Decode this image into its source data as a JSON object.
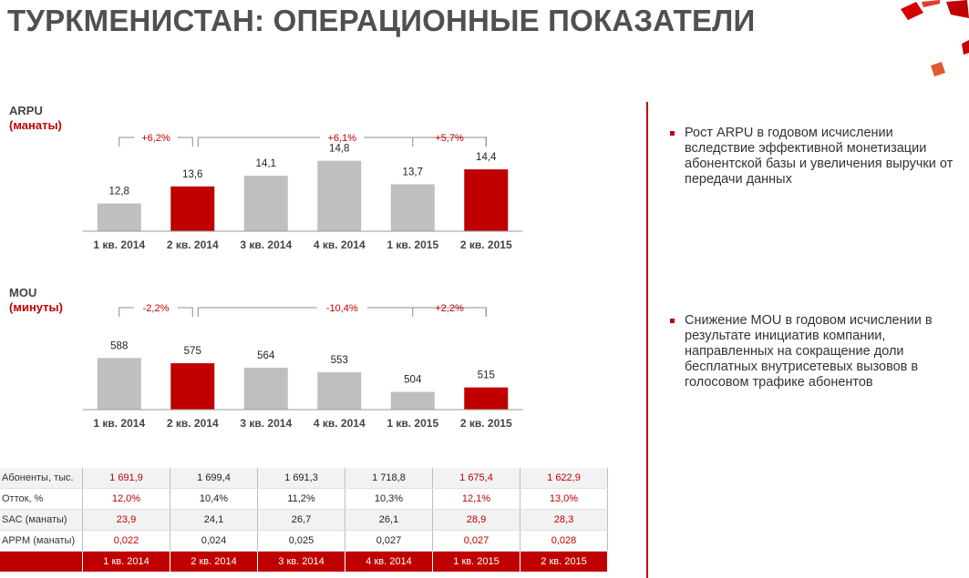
{
  "title": "ТУРКМЕНИСТАН: ОПЕРАЦИОННЫЕ ПОКАЗАТЕЛИ",
  "colors": {
    "accent": "#c00000",
    "gray_bar": "#bfbfbf",
    "title": "#505050"
  },
  "charts": {
    "arpu": {
      "label1": "ARPU",
      "label2": "(манаты)"
    },
    "mou": {
      "label1": "MOU",
      "label2": "(минуты)"
    }
  },
  "chart_data": [
    {
      "type": "bar",
      "title": "ARPU (манаты)",
      "categories": [
        "1 кв. 2014",
        "2 кв. 2014",
        "3 кв. 2014",
        "4 кв. 2014",
        "1 кв. 2015",
        "2 кв. 2015"
      ],
      "values": [
        12.8,
        13.6,
        14.1,
        14.8,
        13.7,
        14.4
      ],
      "value_labels": [
        "12,8",
        "13,6",
        "14,1",
        "14,8",
        "13,7",
        "14,4"
      ],
      "highlight": [
        false,
        true,
        false,
        false,
        false,
        true
      ],
      "ylim": [
        11.5,
        15
      ],
      "brackets": [
        {
          "from": 0,
          "to": 1,
          "label": "+6,2%"
        },
        {
          "from": 1,
          "to": 5,
          "label": "+6,1%"
        },
        {
          "from": 4,
          "to": 5,
          "label": "+5,7%"
        }
      ]
    },
    {
      "type": "bar",
      "title": "MOU (минуты)",
      "categories": [
        "1 кв. 2014",
        "2 кв. 2014",
        "3 кв. 2014",
        "4 кв. 2014",
        "1 кв. 2015",
        "2 кв. 2015"
      ],
      "values": [
        588,
        575,
        564,
        553,
        504,
        515
      ],
      "value_labels": [
        "588",
        "575",
        "564",
        "553",
        "504",
        "515"
      ],
      "highlight": [
        false,
        true,
        false,
        false,
        false,
        true
      ],
      "ylim": [
        460,
        600
      ],
      "brackets": [
        {
          "from": 0,
          "to": 1,
          "label": "-2,2%"
        },
        {
          "from": 1,
          "to": 5,
          "label": "-10,4%"
        },
        {
          "from": 4,
          "to": 5,
          "label": "+2,2%"
        }
      ]
    }
  ],
  "bullets": [
    "Рост ARPU в годовом исчислении вследствие эффективной монетизации абонентской базы и увеличения выручки от передачи данных",
    "Снижение MOU в годовом исчислении в результате инициатив компании, направленных на сокращение доли бесплатных внутрисетевых вызовов в голосовом трафике абонентов"
  ],
  "table": {
    "rows": [
      {
        "label": "Абоненты, тыс.",
        "values": [
          "1 691,9",
          "1 699,4",
          "1 691,3",
          "1 718,8",
          "1 675,4",
          "1 622,9"
        ]
      },
      {
        "label": "Отток, %",
        "values": [
          "12,0%",
          "10,4%",
          "11,2%",
          "10,3%",
          "12,1%",
          "13,0%"
        ]
      },
      {
        "label": "SAC (манаты)",
        "values": [
          "23,9",
          "24,1",
          "26,7",
          "26,1",
          "28,9",
          "28,3"
        ]
      },
      {
        "label": "APPM (манаты)",
        "values": [
          "0,022",
          "0,024",
          "0,025",
          "0,027",
          "0,027",
          "0,028"
        ]
      }
    ],
    "header": [
      "1 кв. 2014",
      "2 кв. 2014",
      "3 кв. 2014",
      "4 кв. 2014",
      "1 кв. 2015",
      "2 кв. 2015"
    ],
    "red_columns": [
      0,
      4,
      5
    ]
  }
}
